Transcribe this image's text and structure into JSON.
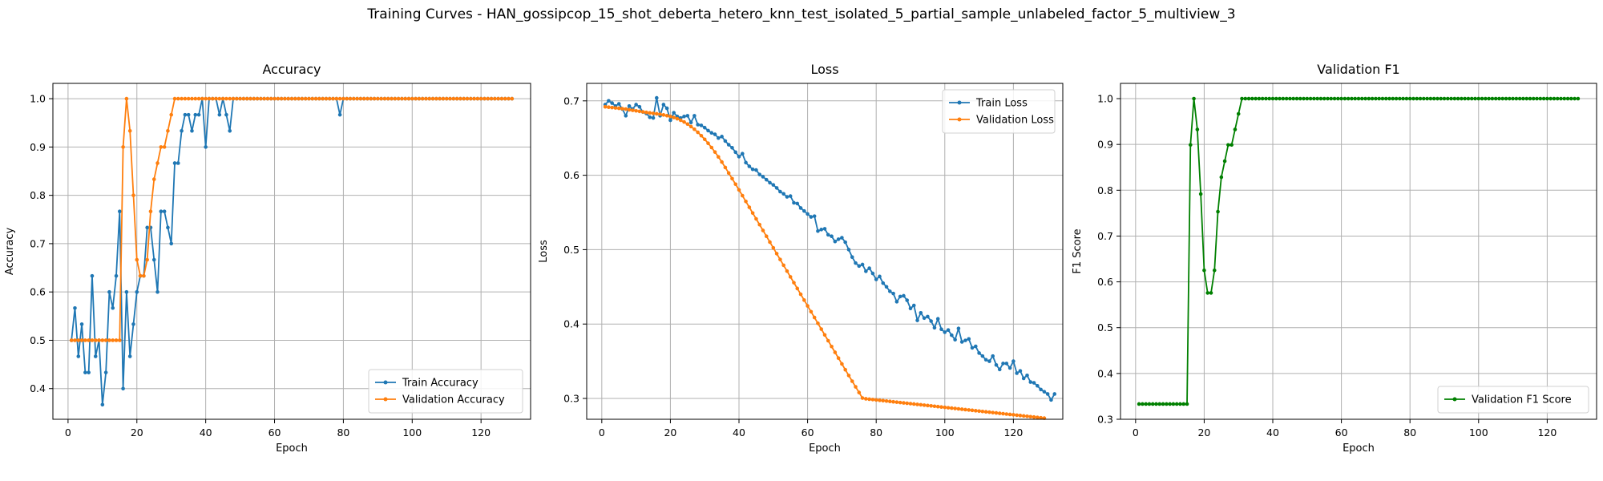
{
  "figure": {
    "title": "Training Curves - HAN_gossipcop_15_shot_deberta_hetero_knn_test_isolated_5_partial_sample_unlabeled_factor_5_multiview_3"
  },
  "colors": {
    "blue": "#1f77b4",
    "orange": "#ff7f0e",
    "green": "#008000",
    "grid": "#b0b0b0"
  },
  "chart_data": [
    {
      "type": "line",
      "title": "Accuracy",
      "xlabel": "Epoch",
      "ylabel": "Accuracy",
      "xlim": [
        -4.4,
        134.4
      ],
      "ylim": [
        0.3365,
        1.0317
      ],
      "xticks": [
        0,
        20,
        40,
        60,
        80,
        100,
        120
      ],
      "yticks": [
        0.4,
        0.5,
        0.6,
        0.7,
        0.8,
        0.9,
        1.0
      ],
      "ytick_labels": [
        "0.4",
        "0.5",
        "0.6",
        "0.7",
        "0.8",
        "0.9",
        "1.0"
      ],
      "grid": true,
      "legend": "lower-right",
      "series": [
        {
          "name": "Train Accuracy",
          "color": "#1f77b4",
          "y": [
            0.5,
            0.5667,
            0.4667,
            0.5333,
            0.4333,
            0.4333,
            0.6333,
            0.4667,
            0.5,
            0.3667,
            0.4333,
            0.6,
            0.5667,
            0.6333,
            0.7667,
            0.4,
            0.6,
            0.4667,
            0.5333,
            0.6,
            0.6333,
            0.6333,
            0.7333,
            0.7333,
            0.6667,
            0.6,
            0.7667,
            0.7667,
            0.7333,
            0.7,
            0.8667,
            0.8667,
            0.9333,
            0.9667,
            0.9667,
            0.9333,
            0.9667,
            0.9667,
            1.0,
            0.9,
            1.0,
            1.0,
            1.0,
            0.9667,
            1.0,
            0.9667,
            0.9333,
            1.0,
            1.0,
            1.0,
            1.0,
            1.0,
            1.0,
            1.0,
            1.0,
            1.0,
            1.0,
            1.0,
            1.0,
            1.0,
            1.0,
            1.0,
            1.0,
            1.0,
            1.0,
            1.0,
            1.0,
            1.0,
            1.0,
            1.0,
            1.0,
            1.0,
            1.0,
            1.0,
            1.0,
            1.0,
            1.0,
            1.0,
            0.9667,
            1.0,
            1.0,
            1.0,
            1.0,
            1.0,
            1.0,
            1.0,
            1.0,
            1.0,
            1.0,
            1.0,
            1.0,
            1.0,
            1.0,
            1.0,
            1.0,
            1.0,
            1.0,
            1.0,
            1.0,
            1.0,
            1.0,
            1.0,
            1.0,
            1.0,
            1.0,
            1.0,
            1.0,
            1.0,
            1.0,
            1.0,
            1.0,
            1.0,
            1.0,
            1.0,
            1.0,
            1.0,
            1.0,
            1.0,
            1.0,
            1.0,
            1.0,
            1.0,
            1.0,
            1.0,
            1.0,
            1.0,
            1.0,
            1.0,
            1.0
          ]
        },
        {
          "name": "Validation Accuracy",
          "color": "#ff7f0e",
          "y": [
            0.5,
            0.5,
            0.5,
            0.5,
            0.5,
            0.5,
            0.5,
            0.5,
            0.5,
            0.5,
            0.5,
            0.5,
            0.5,
            0.5,
            0.5,
            0.9,
            1.0,
            0.9333,
            0.8,
            0.6667,
            0.6333,
            0.6333,
            0.6667,
            0.7667,
            0.8333,
            0.8667,
            0.9,
            0.9,
            0.9333,
            0.9667,
            1.0,
            1.0,
            1.0,
            1.0,
            1.0,
            1.0,
            1.0,
            1.0,
            1.0,
            1.0,
            1.0,
            1.0,
            1.0,
            1.0,
            1.0,
            1.0,
            1.0,
            1.0,
            1.0,
            1.0,
            1.0,
            1.0,
            1.0,
            1.0,
            1.0,
            1.0,
            1.0,
            1.0,
            1.0,
            1.0,
            1.0,
            1.0,
            1.0,
            1.0,
            1.0,
            1.0,
            1.0,
            1.0,
            1.0,
            1.0,
            1.0,
            1.0,
            1.0,
            1.0,
            1.0,
            1.0,
            1.0,
            1.0,
            1.0,
            1.0,
            1.0,
            1.0,
            1.0,
            1.0,
            1.0,
            1.0,
            1.0,
            1.0,
            1.0,
            1.0,
            1.0,
            1.0,
            1.0,
            1.0,
            1.0,
            1.0,
            1.0,
            1.0,
            1.0,
            1.0,
            1.0,
            1.0,
            1.0,
            1.0,
            1.0,
            1.0,
            1.0,
            1.0,
            1.0,
            1.0,
            1.0,
            1.0,
            1.0,
            1.0,
            1.0,
            1.0,
            1.0,
            1.0,
            1.0,
            1.0,
            1.0,
            1.0,
            1.0,
            1.0,
            1.0,
            1.0,
            1.0,
            1.0,
            1.0
          ]
        }
      ]
    },
    {
      "type": "line",
      "title": "Loss",
      "xlabel": "Epoch",
      "ylabel": "Loss",
      "xlim": [
        -4.4,
        134.4
      ],
      "ylim": [
        0.272,
        0.7235
      ],
      "xticks": [
        0,
        20,
        40,
        60,
        80,
        100,
        120
      ],
      "yticks": [
        0.3,
        0.4,
        0.5,
        0.6,
        0.7
      ],
      "ytick_labels": [
        "0.3",
        "0.4",
        "0.5",
        "0.6",
        "0.7"
      ],
      "grid": true,
      "legend": "upper-right",
      "series": [
        {
          "name": "Train Loss",
          "color": "#1f77b4",
          "y": [
            0.695,
            0.7,
            0.697,
            0.693,
            0.696,
            0.689,
            0.68,
            0.693,
            0.689,
            0.695,
            0.692,
            0.685,
            0.683,
            0.678,
            0.677,
            0.704,
            0.68,
            0.695,
            0.69,
            0.674,
            0.684,
            0.679,
            0.677,
            0.679,
            0.68,
            0.671,
            0.68,
            0.668,
            0.667,
            0.664,
            0.66,
            0.657,
            0.655,
            0.65,
            0.652,
            0.646,
            0.641,
            0.637,
            0.631,
            0.625,
            0.629,
            0.617,
            0.612,
            0.608,
            0.607,
            0.601,
            0.598,
            0.594,
            0.59,
            0.587,
            0.583,
            0.578,
            0.575,
            0.571,
            0.572,
            0.563,
            0.562,
            0.556,
            0.552,
            0.548,
            0.544,
            0.545,
            0.525,
            0.527,
            0.528,
            0.52,
            0.518,
            0.511,
            0.514,
            0.516,
            0.51,
            0.5,
            0.49,
            0.482,
            0.478,
            0.48,
            0.471,
            0.475,
            0.468,
            0.46,
            0.464,
            0.455,
            0.45,
            0.444,
            0.441,
            0.43,
            0.437,
            0.438,
            0.432,
            0.421,
            0.425,
            0.405,
            0.415,
            0.408,
            0.41,
            0.404,
            0.395,
            0.407,
            0.393,
            0.389,
            0.392,
            0.385,
            0.379,
            0.394,
            0.376,
            0.378,
            0.38,
            0.368,
            0.37,
            0.361,
            0.357,
            0.352,
            0.35,
            0.357,
            0.345,
            0.339,
            0.347,
            0.347,
            0.341,
            0.35,
            0.334,
            0.337,
            0.327,
            0.331,
            0.322,
            0.321,
            0.317,
            0.312,
            0.309,
            0.306,
            0.298,
            0.306
          ]
        },
        {
          "name": "Validation Loss",
          "color": "#ff7f0e",
          "y": [
            0.692,
            0.6915,
            0.691,
            0.6905,
            0.69,
            0.6895,
            0.689,
            0.688,
            0.6873,
            0.6866,
            0.6859,
            0.6852,
            0.6845,
            0.6838,
            0.6832,
            0.6826,
            0.682,
            0.6811,
            0.6801,
            0.679,
            0.6776,
            0.676,
            0.674,
            0.6716,
            0.6688,
            0.6655,
            0.6618,
            0.6577,
            0.6532,
            0.6483,
            0.643,
            0.6373,
            0.6312,
            0.6247,
            0.6178,
            0.6105,
            0.603,
            0.5955,
            0.588,
            0.5803,
            0.5726,
            0.5648,
            0.557,
            0.5492,
            0.5414,
            0.5336,
            0.5258,
            0.518,
            0.5102,
            0.5024,
            0.4946,
            0.4868,
            0.479,
            0.4712,
            0.4634,
            0.4556,
            0.4478,
            0.44,
            0.4322,
            0.4244,
            0.4166,
            0.4088,
            0.401,
            0.3932,
            0.3854,
            0.3776,
            0.3698,
            0.362,
            0.3542,
            0.3464,
            0.3386,
            0.3308,
            0.3232,
            0.3156,
            0.308,
            0.3005,
            0.2995,
            0.299,
            0.2985,
            0.298,
            0.2975,
            0.297,
            0.2965,
            0.296,
            0.2955,
            0.295,
            0.2945,
            0.294,
            0.2935,
            0.293,
            0.2925,
            0.292,
            0.2915,
            0.291,
            0.2905,
            0.29,
            0.2895,
            0.289,
            0.2885,
            0.288,
            0.2875,
            0.287,
            0.2865,
            0.286,
            0.2855,
            0.285,
            0.2845,
            0.284,
            0.2835,
            0.283,
            0.2825,
            0.282,
            0.2815,
            0.281,
            0.2805,
            0.28,
            0.2795,
            0.279,
            0.2785,
            0.278,
            0.2775,
            0.277,
            0.2765,
            0.276,
            0.2755,
            0.275,
            0.2745,
            0.274,
            0.2735
          ]
        }
      ]
    },
    {
      "type": "line",
      "title": "Validation F1",
      "xlabel": "Epoch",
      "ylabel": "F1 Score",
      "xlim": [
        -4.4,
        134.4
      ],
      "ylim": [
        0.3,
        1.0333
      ],
      "xticks": [
        0,
        20,
        40,
        60,
        80,
        100,
        120
      ],
      "yticks": [
        0.3,
        0.4,
        0.5,
        0.6,
        0.7,
        0.8,
        0.9,
        1.0
      ],
      "ytick_labels": [
        "0.3",
        "0.4",
        "0.5",
        "0.6",
        "0.7",
        "0.8",
        "0.9",
        "1.0"
      ],
      "grid": true,
      "legend": "lower-right",
      "series": [
        {
          "name": "Validation F1 Score",
          "color": "#008000",
          "y": [
            0.3333,
            0.3333,
            0.3333,
            0.3333,
            0.3333,
            0.3333,
            0.3333,
            0.3333,
            0.3333,
            0.3333,
            0.3333,
            0.3333,
            0.3333,
            0.3333,
            0.3333,
            0.899,
            1.0,
            0.9327,
            0.7917,
            0.625,
            0.5758,
            0.5758,
            0.625,
            0.7532,
            0.8286,
            0.8636,
            0.899,
            0.899,
            0.9327,
            0.9667,
            1.0,
            1.0,
            1.0,
            1.0,
            1.0,
            1.0,
            1.0,
            1.0,
            1.0,
            1.0,
            1.0,
            1.0,
            1.0,
            1.0,
            1.0,
            1.0,
            1.0,
            1.0,
            1.0,
            1.0,
            1.0,
            1.0,
            1.0,
            1.0,
            1.0,
            1.0,
            1.0,
            1.0,
            1.0,
            1.0,
            1.0,
            1.0,
            1.0,
            1.0,
            1.0,
            1.0,
            1.0,
            1.0,
            1.0,
            1.0,
            1.0,
            1.0,
            1.0,
            1.0,
            1.0,
            1.0,
            1.0,
            1.0,
            1.0,
            1.0,
            1.0,
            1.0,
            1.0,
            1.0,
            1.0,
            1.0,
            1.0,
            1.0,
            1.0,
            1.0,
            1.0,
            1.0,
            1.0,
            1.0,
            1.0,
            1.0,
            1.0,
            1.0,
            1.0,
            1.0,
            1.0,
            1.0,
            1.0,
            1.0,
            1.0,
            1.0,
            1.0,
            1.0,
            1.0,
            1.0,
            1.0,
            1.0,
            1.0,
            1.0,
            1.0,
            1.0,
            1.0,
            1.0,
            1.0,
            1.0,
            1.0,
            1.0,
            1.0,
            1.0,
            1.0,
            1.0,
            1.0,
            1.0,
            1.0
          ]
        }
      ]
    }
  ]
}
